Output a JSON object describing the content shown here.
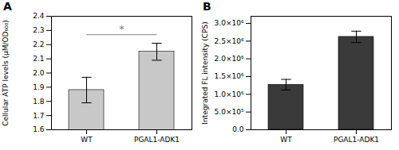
{
  "chart_data": [
    {
      "type": "bar",
      "title": "A",
      "categories": [
        "WT",
        "PGAL1-ADK1"
      ],
      "values": [
        1.88,
        2.15
      ],
      "errors": [
        0.09,
        0.06
      ],
      "color": "#c8c8c8",
      "ylabel": "Cellular ATP levels (μM/OD₆₀₀)",
      "ylim": [
        1.6,
        2.4
      ],
      "yticks": [
        1.6,
        1.7,
        1.8,
        1.9,
        {
          "value": 2.0,
          "label": "2.0"
        },
        2.1,
        2.2,
        2.3,
        2.4
      ],
      "grid": false,
      "annotations": [
        {
          "text": "*",
          "y": 2.285,
          "line_y": 2.27,
          "color": "gray"
        }
      ]
    },
    {
      "type": "bar",
      "title": "B",
      "categories": [
        "WT",
        "PGAL1-ADK1"
      ],
      "values": [
        1270000,
        2620000
      ],
      "errors": [
        150000,
        160000
      ],
      "color": "#3a3a3a",
      "ylabel": "Integrated FL intensity (CPS)",
      "ylim": [
        0,
        3200000
      ],
      "yticks": [
        {
          "value": 0,
          "label": "0.0"
        },
        {
          "value": 500000,
          "label": "5.0×10⁵"
        },
        {
          "value": 1000000,
          "label": "1.0×10⁶"
        },
        {
          "value": 1500000,
          "label": "1.5×10⁶"
        },
        {
          "value": 2000000,
          "label": "2.0×10⁶"
        },
        {
          "value": 2500000,
          "label": "2.5×10⁶"
        },
        {
          "value": 3000000,
          "label": "3.0×10⁶"
        }
      ],
      "grid": false
    }
  ]
}
